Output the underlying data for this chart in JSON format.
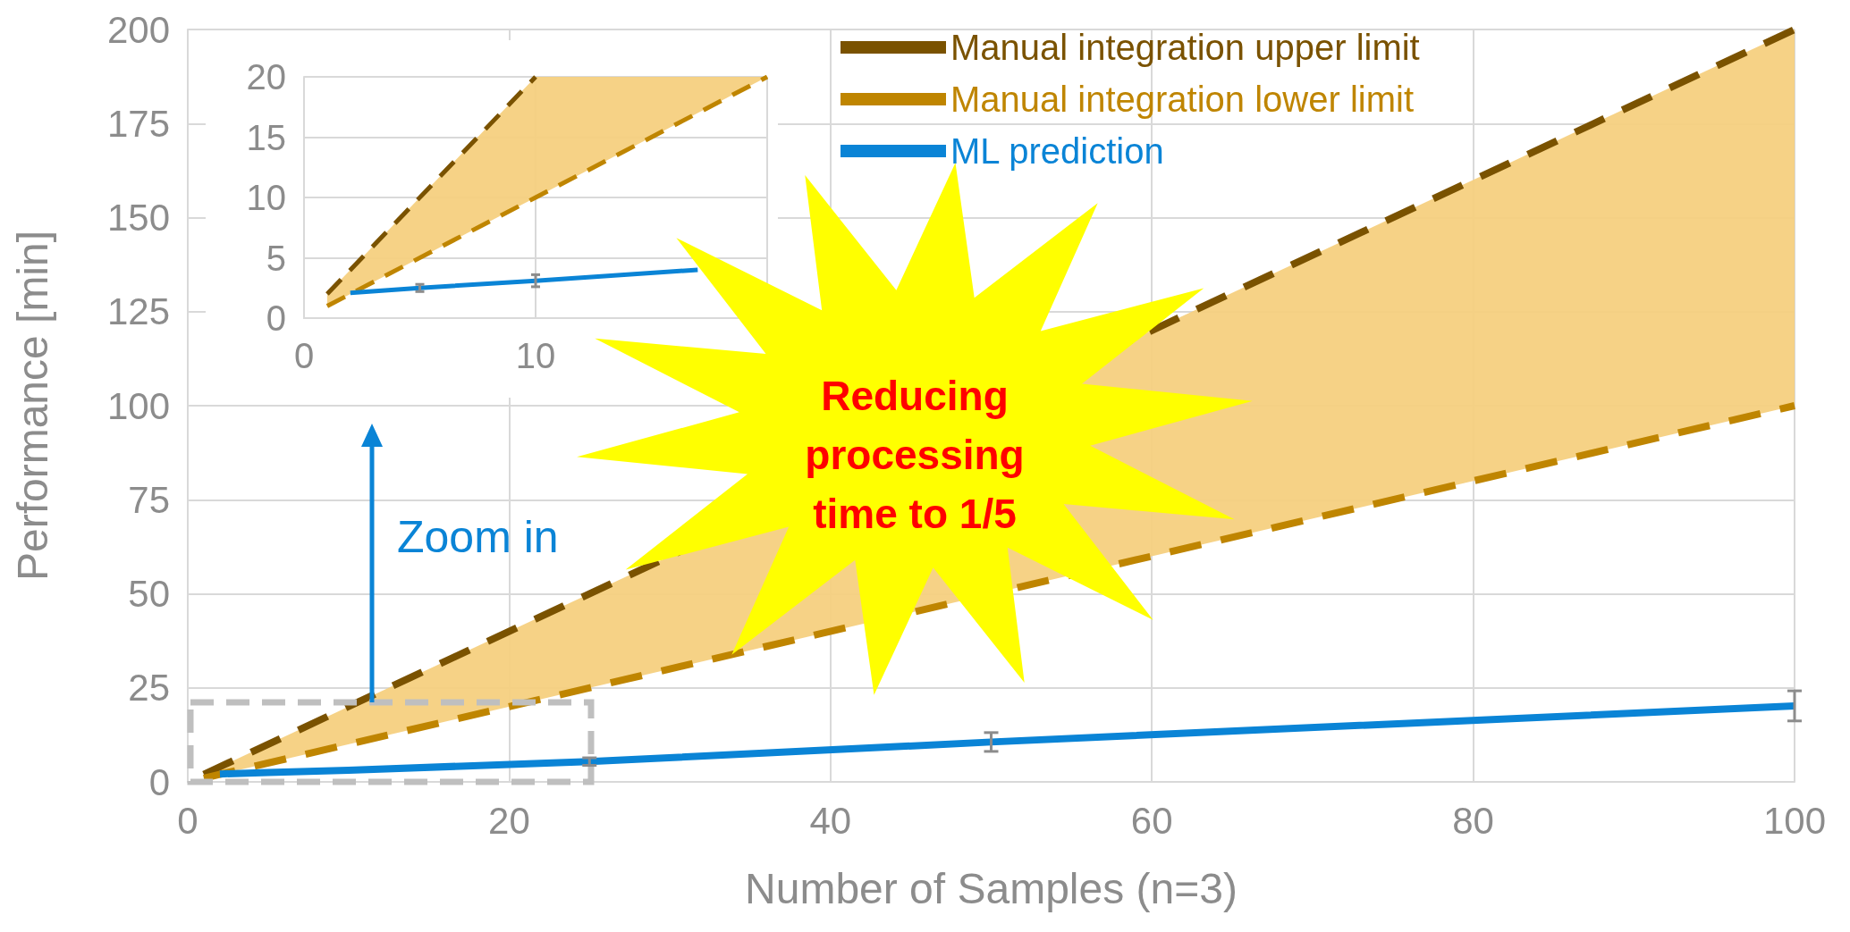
{
  "chart_data": [
    {
      "type": "line",
      "xlabel": "Number of Samples (n=3)",
      "ylabel": "Performance [min]",
      "xlim": [
        0,
        100
      ],
      "xticks": [
        0,
        20,
        40,
        60,
        80,
        100
      ],
      "ylim": [
        0,
        200
      ],
      "yticks": [
        0,
        25,
        50,
        75,
        100,
        125,
        150,
        175,
        200
      ],
      "grid": true,
      "legend": "top right",
      "marker": "none",
      "series": [
        {
          "name": "Manual integration upper limit",
          "color": "#7a5200",
          "line_style": "dashed",
          "x": [
            1,
            100
          ],
          "values": [
            2,
            200
          ]
        },
        {
          "name": "Manual integration lower limit",
          "color": "#bf8500",
          "line_style": "dashed",
          "x": [
            1,
            100
          ],
          "values": [
            1,
            100
          ],
          "lower": [
            1,
            100
          ],
          "upper": [
            2,
            200
          ]
        },
        {
          "name": "ML prediction",
          "color": "#0a84d6",
          "line_style": "solid",
          "x": [
            2,
            5,
            10,
            25,
            50,
            100
          ],
          "values": [
            2.1,
            2.5,
            3.1,
            5.4,
            10.6,
            20.2
          ],
          "errors": [
            null,
            null,
            null,
            1,
            2.5,
            4
          ]
        }
      ],
      "annotations": [
        "Reducing processing time to 1/5",
        "Zoom in"
      ]
    },
    {
      "type": "line",
      "xlim": [
        0,
        20
      ],
      "xticks": [
        0,
        10,
        {
          "value": 20,
          "label": null
        }
      ],
      "ylim": [
        0,
        20
      ],
      "yticks": [
        0,
        5,
        10,
        15,
        20
      ],
      "grid": true,
      "legend": false,
      "marker": "none",
      "series": [
        {
          "color": "#7a5200",
          "line_style": "dashed",
          "x": [
            1,
            10
          ],
          "values": [
            2,
            20
          ]
        },
        {
          "color": "#bf8500",
          "line_style": "dashed",
          "x": [
            1,
            10,
            20
          ],
          "values": [
            1,
            10,
            20
          ],
          "lower": [
            1,
            10,
            20
          ],
          "upper": [
            2,
            20,
            20
          ]
        },
        {
          "color": "#0a84d6",
          "line_style": "solid",
          "x": [
            2,
            5,
            10,
            17
          ],
          "values": [
            2.1,
            2.5,
            3.1,
            4
          ],
          "errors": [
            null,
            0.3,
            0.5,
            null
          ]
        }
      ]
    }
  ]
}
